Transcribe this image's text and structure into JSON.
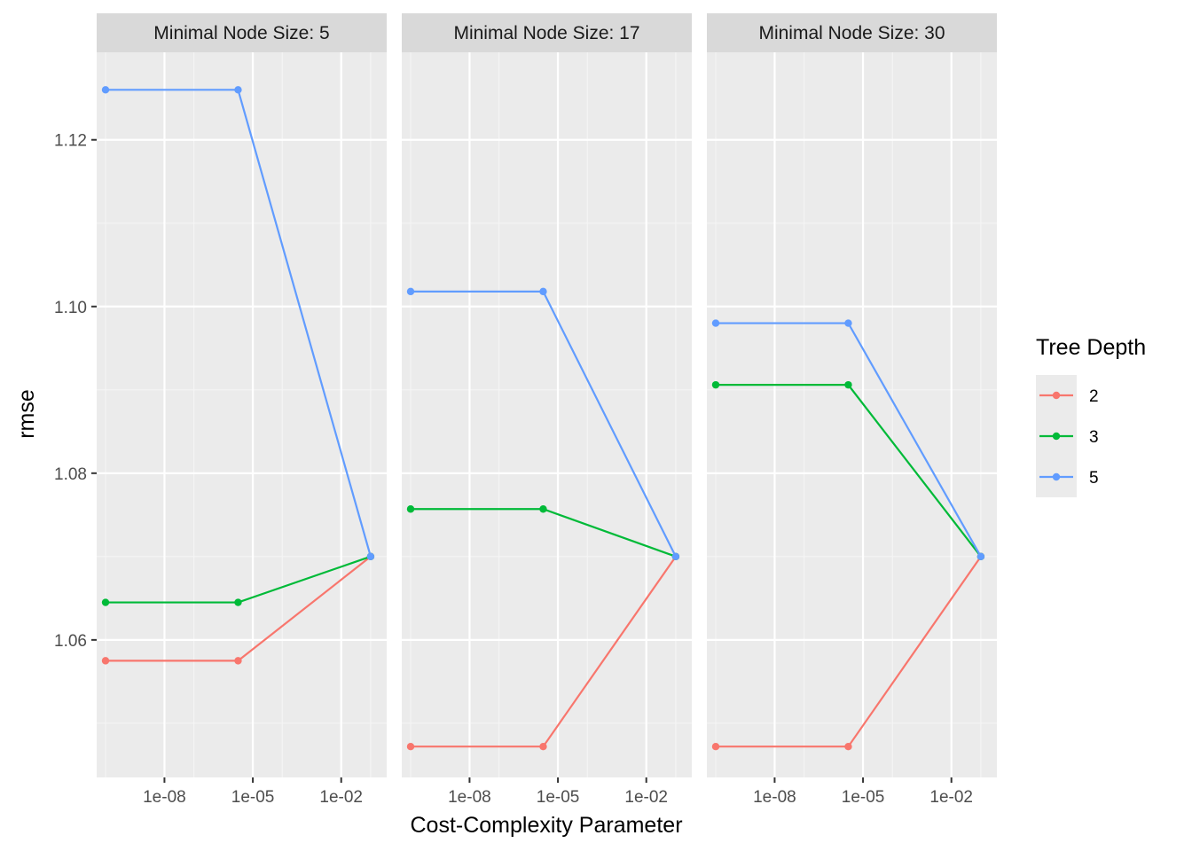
{
  "chart_data": {
    "type": "line",
    "xlabel": "Cost-Complexity Parameter",
    "ylabel": "rmse",
    "x_scale": "log10",
    "xlim": [
      5e-11,
      0.35
    ],
    "ylim": [
      1.0435,
      1.1305
    ],
    "x_ticks": [
      1e-08,
      1e-05,
      0.01
    ],
    "x_tick_labels": [
      "1e-08",
      "1e-05",
      "1e-02"
    ],
    "y_ticks": [
      1.06,
      1.08,
      1.1,
      1.12
    ],
    "y_tick_labels": [
      "1.06",
      "1.08",
      "1.10",
      "1.12"
    ],
    "grid": true,
    "legend": {
      "title": "Tree Depth",
      "position": "right",
      "entries": [
        {
          "label": "2",
          "color": "#F8766D"
        },
        {
          "label": "3",
          "color": "#00BA38"
        },
        {
          "label": "5",
          "color": "#619CFF"
        }
      ]
    },
    "facets": [
      {
        "label": "Minimal Node Size: 5",
        "series": [
          {
            "name": "2",
            "x": [
              1e-10,
              3.16e-06,
              0.1
            ],
            "y": [
              1.0575,
              1.0575,
              1.07
            ]
          },
          {
            "name": "3",
            "x": [
              1e-10,
              3.16e-06,
              0.1
            ],
            "y": [
              1.0645,
              1.0645,
              1.07
            ]
          },
          {
            "name": "5",
            "x": [
              1e-10,
              3.16e-06,
              0.1
            ],
            "y": [
              1.126,
              1.126,
              1.07
            ]
          }
        ]
      },
      {
        "label": "Minimal Node Size: 17",
        "series": [
          {
            "name": "2",
            "x": [
              1e-10,
              3.16e-06,
              0.1
            ],
            "y": [
              1.0472,
              1.0472,
              1.07
            ]
          },
          {
            "name": "3",
            "x": [
              1e-10,
              3.16e-06,
              0.1
            ],
            "y": [
              1.0757,
              1.0757,
              1.07
            ]
          },
          {
            "name": "5",
            "x": [
              1e-10,
              3.16e-06,
              0.1
            ],
            "y": [
              1.1018,
              1.1018,
              1.07
            ]
          }
        ]
      },
      {
        "label": "Minimal Node Size: 30",
        "series": [
          {
            "name": "2",
            "x": [
              1e-10,
              3.16e-06,
              0.1
            ],
            "y": [
              1.0472,
              1.0472,
              1.07
            ]
          },
          {
            "name": "3",
            "x": [
              1e-10,
              3.16e-06,
              0.1
            ],
            "y": [
              1.0906,
              1.0906,
              1.07
            ]
          },
          {
            "name": "5",
            "x": [
              1e-10,
              3.16e-06,
              0.1
            ],
            "y": [
              1.098,
              1.098,
              1.07
            ]
          }
        ]
      }
    ]
  }
}
